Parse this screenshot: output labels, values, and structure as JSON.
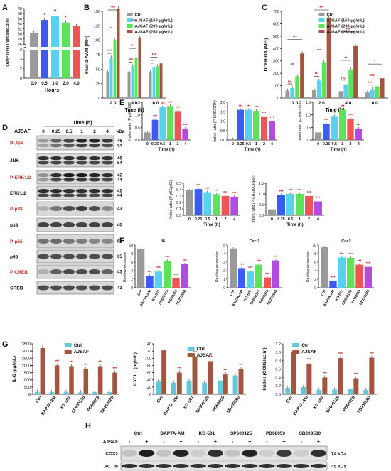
{
  "figure": {
    "panel_letters": [
      "A",
      "B",
      "C",
      "D",
      "E",
      "F",
      "G",
      "H"
    ],
    "colors": {
      "grey": "#9a9a9a",
      "blue": "#3b5bf5",
      "cyan": "#58d3ef",
      "green": "#5ce35a",
      "red": "#f05454",
      "purple": "#b14ce0",
      "brown": "#a3553f",
      "teal": "#62c7d8",
      "sig": "#c02020",
      "bracket": "#e4186a"
    },
    "panelA": {
      "ylabel": "cAMP level (nmol/mg.pro)",
      "xlabel": "Hours",
      "categories": [
        "0.0",
        "0.5",
        "1.0",
        "2.0",
        "4.0"
      ],
      "yticks": [
        "0",
        "2",
        "4",
        "6",
        "26",
        "28",
        "30",
        "32",
        "34",
        "36",
        "38",
        "40"
      ],
      "sig": [
        "",
        "*",
        "**",
        "*",
        ""
      ]
    },
    "panelB": {
      "ylabel": "Fluo-3-AAM (MFI)",
      "xlabel": "Time (h)",
      "categories": [
        "2.0",
        "4.0",
        "6.0"
      ],
      "legend": [
        "Ctrl",
        "AJSAF (150 μg/mL)",
        "AJSAF (200 μg/mL)",
        "AJSAF (250 μg/mL)"
      ],
      "yticks": [
        "0",
        "25",
        "50",
        "75",
        "100",
        "125",
        "150"
      ],
      "sig": [
        "***",
        "**",
        "***",
        "***",
        "***",
        "***",
        "**",
        "***"
      ]
    },
    "panelC": {
      "ylabel": "DCFH-DA (MFI)",
      "xlabel": "Time (h)",
      "categories": [
        "1.0",
        "2.0",
        "4.0",
        "6.0"
      ],
      "legend": [
        "Ctrl",
        "AJSAF (150 μg/mL)",
        "AJSAF (200 μg/mL)",
        "AJSAF (250 μg/mL)"
      ],
      "yticks": [
        "0",
        "100",
        "200",
        "300",
        "400",
        "500",
        "600",
        "700"
      ],
      "sig": [
        "ns",
        "**",
        "***",
        "***",
        "***",
        "***",
        "ns",
        "**",
        "***",
        "***",
        "ns",
        "*",
        "***"
      ]
    },
    "panelD": {
      "time_header": "Time (h)",
      "ajsaf_label": "AJSAF",
      "lanes": [
        "0",
        "0.25",
        "0.5",
        "1",
        "2",
        "4"
      ],
      "kda_label": "kDa",
      "rows": [
        {
          "name": "P-JNK",
          "kda": [
            "46",
            "54"
          ]
        },
        {
          "name": "JNK",
          "kda": [
            "46",
            "54"
          ]
        },
        {
          "name": "P-ERK1/2",
          "kda": [
            "42",
            "44"
          ]
        },
        {
          "name": "ERK1/2",
          "kda": [
            "42",
            "44"
          ]
        },
        {
          "name": "P-p38",
          "kda": [
            "43"
          ]
        },
        {
          "name": "p38",
          "kda": [
            "40"
          ]
        },
        {
          "name": "P-p65",
          "kda": [
            "65"
          ]
        },
        {
          "name": "p65",
          "kda": [
            "65"
          ]
        },
        {
          "name": "P-CREB",
          "kda": [
            "43"
          ]
        },
        {
          "name": "CREB",
          "kda": [
            "43"
          ]
        }
      ]
    },
    "panelE": {
      "xlabel": "Time (h)",
      "categories": [
        "0",
        "0.25",
        "0.5",
        "1",
        "2",
        "4"
      ],
      "charts": [
        {
          "ylabel": "Inden ratio (P-p38/p38)",
          "yticks": [
            "0.0",
            "0.5",
            "1.0",
            "1.5"
          ]
        },
        {
          "ylabel": "Inden ratio (P-ERK/ERK)",
          "yticks": [
            "0.0",
            "0.5",
            "1.0",
            "1.5",
            "2.0"
          ]
        },
        {
          "ylabel": "Inden ratio (P-JNK/JNK)",
          "yticks": [
            "0.0",
            "0.5",
            "1.0",
            "1.5"
          ]
        },
        {
          "ylabel": "Inden ratio (P-p65/p65)",
          "yticks": [
            "0.0",
            "0.1",
            "0.2",
            "0.3",
            "0.4",
            "0.5"
          ]
        },
        {
          "ylabel": "Inden ratio (P-CREB/CREB)",
          "yticks": [
            "0.0",
            "0.5",
            "1.0",
            "1.5"
          ]
        }
      ]
    },
    "panelF": {
      "ylabel": "Realtive expression",
      "categories": [
        "Ctrl",
        "BAPTA-AM",
        "KG-501",
        "SP600125",
        "PD98059",
        "SB203580"
      ],
      "charts": [
        {
          "title": "Il6",
          "yticks": [
            "0",
            "2",
            "4",
            "6",
            "8",
            "10"
          ]
        },
        {
          "title": "Cxcl1",
          "yticks": [
            "0",
            "1",
            "2",
            "3",
            "4",
            "5"
          ]
        },
        {
          "title": "Cox2",
          "yticks": [
            "0",
            "2",
            "4",
            "6",
            "8",
            "10"
          ]
        }
      ]
    },
    "panelG": {
      "legend": [
        "Ctrl",
        "AJSAF"
      ],
      "categories": [
        "Ctrl",
        "BAPTA-AM",
        "KG-501",
        "SP600125",
        "PD98059",
        "SB203580"
      ],
      "charts": [
        {
          "ylabel": "IL-6 (pg/mL)",
          "yticks": [
            "0",
            "500",
            "1000",
            "1500",
            "2000",
            "2500",
            "3000",
            "3500"
          ]
        },
        {
          "ylabel": "CXCL1 (pg/mL)",
          "yticks": [
            "0",
            "20",
            "40",
            "60",
            "80",
            "100",
            "120",
            "140"
          ]
        },
        {
          "ylabel": "Intden (COX2/actin)",
          "yticks": [
            "0.0",
            "0.2",
            "0.4",
            "0.6",
            "0.8",
            "1.0",
            "1.2"
          ]
        }
      ]
    },
    "panelH": {
      "groups": [
        "Ctrl",
        "BAPTA-AM",
        "KG-501",
        "SP600125",
        "PD98059",
        "SB203580"
      ],
      "ajsaf_label": "AJSAF",
      "signs": [
        "-",
        "+",
        "-",
        "+",
        "-",
        "+",
        "-",
        "+",
        "-",
        "+",
        "-",
        "+"
      ],
      "rows": [
        {
          "name": "COX2",
          "kda": "74 kDa"
        },
        {
          "name": "ACTIN",
          "kda": "45 kDa"
        }
      ]
    }
  },
  "chart_data": [
    {
      "type": "bar",
      "id": "A",
      "categories": [
        "0.0",
        "0.5",
        "1.0",
        "2.0",
        "4.0"
      ],
      "values": [
        30.5,
        35.5,
        37,
        34.5,
        33
      ],
      "ylabel": "cAMP level (nmol/mg.pro)",
      "xlabel": "Hours"
    },
    {
      "type": "bar",
      "id": "B",
      "categories": [
        "2.0",
        "4.0",
        "6.0"
      ],
      "series": [
        {
          "name": "Ctrl",
          "values": [
            45,
            46,
            44
          ]
        },
        {
          "name": "AJSAF (150 μg/mL)",
          "values": [
            70,
            55,
            53
          ]
        },
        {
          "name": "AJSAF (200 μg/mL)",
          "values": [
            100,
            70,
            55
          ]
        },
        {
          "name": "AJSAF (250 μg/mL)",
          "values": [
            155,
            105,
            60
          ]
        }
      ],
      "ylim": [
        0,
        150
      ],
      "ylabel": "Fluo-3-AAM (MFI)",
      "xlabel": "Time (h)"
    },
    {
      "type": "bar",
      "id": "C",
      "categories": [
        "1.0",
        "2.0",
        "4.0",
        "6.0"
      ],
      "series": [
        {
          "name": "Ctrl",
          "values": [
            60,
            65,
            55,
            45
          ]
        },
        {
          "name": "AJSAF (150 μg/mL)",
          "values": [
            80,
            140,
            110,
            70
          ]
        },
        {
          "name": "AJSAF (200 μg/mL)",
          "values": [
            175,
            290,
            230,
            95
          ]
        },
        {
          "name": "AJSAF (250 μg/mL)",
          "values": [
            360,
            650,
            420,
            160
          ]
        }
      ],
      "ylim": [
        0,
        700
      ],
      "ylabel": "DCFH-DA (MFI)",
      "xlabel": "Time (h)"
    },
    {
      "type": "bar",
      "id": "E1",
      "categories": [
        "0",
        "0.25",
        "0.5",
        "1",
        "2",
        "4"
      ],
      "values": [
        0.3,
        0.8,
        1.3,
        1.35,
        1.15,
        0.45
      ],
      "ylim": [
        0,
        1.5
      ]
    },
    {
      "type": "bar",
      "id": "E2",
      "categories": [
        "0",
        "0.25",
        "0.5",
        "1",
        "2",
        "4"
      ],
      "values": [
        0.05,
        1.6,
        1.6,
        1.55,
        1.25,
        1.0
      ],
      "ylim": [
        0,
        2.0
      ]
    },
    {
      "type": "bar",
      "id": "E3",
      "categories": [
        "0",
        "0.25",
        "0.5",
        "1",
        "2",
        "4"
      ],
      "values": [
        0.3,
        0.65,
        0.95,
        1.2,
        0.85,
        0.45
      ],
      "ylim": [
        0,
        1.5
      ]
    },
    {
      "type": "bar",
      "id": "E4",
      "categories": [
        "0",
        "0.25",
        "0.5",
        "1",
        "2",
        "4"
      ],
      "values": [
        0.39,
        0.41,
        0.36,
        0.33,
        0.3,
        0.29
      ],
      "ylim": [
        0,
        0.5
      ]
    },
    {
      "type": "bar",
      "id": "E5",
      "categories": [
        "0",
        "0.25",
        "0.5",
        "1",
        "2",
        "4"
      ],
      "values": [
        0.28,
        0.95,
        1.0,
        1.0,
        0.9,
        0.65
      ],
      "ylim": [
        0,
        1.5
      ]
    },
    {
      "type": "bar",
      "id": "F1",
      "categories": [
        "Ctrl",
        "BAPTA-AM",
        "KG-501",
        "SP600125",
        "PD98059",
        "SB203580"
      ],
      "values": [
        9,
        2.8,
        3.8,
        6.3,
        2.2,
        5.5
      ],
      "ylim": [
        0,
        10
      ]
    },
    {
      "type": "bar",
      "id": "F2",
      "categories": [
        "Ctrl",
        "BAPTA-AM",
        "KG-501",
        "SP600125",
        "PD98059",
        "SB203580"
      ],
      "values": [
        4.6,
        2.3,
        1.9,
        2.7,
        1.2,
        3.2
      ],
      "ylim": [
        0,
        5
      ]
    },
    {
      "type": "bar",
      "id": "F3",
      "categories": [
        "Ctrl",
        "BAPTA-AM",
        "KG-501",
        "SP600125",
        "PD98059",
        "SB203580"
      ],
      "values": [
        9.5,
        1.6,
        7.1,
        7.0,
        5.4,
        4.9
      ],
      "ylim": [
        0,
        10
      ]
    },
    {
      "type": "bar",
      "id": "G1",
      "categories": [
        "Ctrl",
        "BAPTA-AM",
        "KG-501",
        "SP600125",
        "PD98059",
        "SB203580"
      ],
      "series": [
        {
          "name": "Ctrl",
          "values": [
            160,
            155,
            160,
            130,
            160,
            140
          ]
        },
        {
          "name": "AJSAF",
          "values": [
            3200,
            2000,
            1950,
            1750,
            1950,
            1500
          ]
        }
      ],
      "ylim": [
        0,
        3500
      ]
    },
    {
      "type": "bar",
      "id": "G2",
      "categories": [
        "Ctrl",
        "BAPTA-AM",
        "KG-501",
        "SP600125",
        "PD98059",
        "SB203580"
      ],
      "series": [
        {
          "name": "Ctrl",
          "values": [
            35,
            32,
            38,
            32,
            38,
            52
          ]
        },
        {
          "name": "AJSAF",
          "values": [
            122,
            60,
            105,
            92,
            55,
            70
          ]
        }
      ],
      "ylim": [
        0,
        140
      ]
    },
    {
      "type": "bar",
      "id": "G3",
      "categories": [
        "Ctrl",
        "BAPTA-AM",
        "KG-501",
        "SP600125",
        "PD98059",
        "SB203580"
      ],
      "series": [
        {
          "name": "Ctrl",
          "values": [
            0.15,
            0.17,
            0.1,
            0.11,
            0.12,
            0.1
          ]
        },
        {
          "name": "AJSAF",
          "values": [
            1.0,
            0.73,
            0.4,
            0.86,
            0.38,
            0.87
          ]
        }
      ],
      "ylim": [
        0,
        1.2
      ]
    }
  ]
}
